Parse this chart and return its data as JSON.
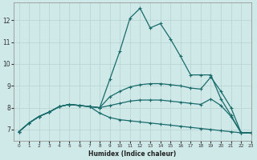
{
  "xlabel": "Humidex (Indice chaleur)",
  "bg_color": "#cfe8e8",
  "line_color": "#1a6b6b",
  "grid_color": "#b8d0d0",
  "xlim": [
    -0.5,
    23
  ],
  "ylim": [
    6.5,
    12.8
  ],
  "yticks": [
    7,
    8,
    9,
    10,
    11,
    12
  ],
  "xticks": [
    0,
    1,
    2,
    3,
    4,
    5,
    6,
    7,
    8,
    9,
    10,
    11,
    12,
    13,
    14,
    15,
    16,
    17,
    18,
    19,
    20,
    21,
    22,
    23
  ],
  "curves": [
    {
      "x": [
        0,
        1,
        2,
        3,
        4,
        5,
        6,
        7,
        8,
        9,
        10,
        11,
        12,
        13,
        14,
        15,
        16,
        17,
        18,
        19,
        20,
        21,
        22,
        23
      ],
      "y": [
        6.9,
        7.3,
        7.6,
        7.8,
        8.05,
        8.15,
        8.1,
        8.05,
        8.0,
        9.3,
        10.6,
        12.1,
        12.55,
        11.65,
        11.85,
        11.15,
        10.35,
        9.5,
        9.5,
        9.5,
        8.4,
        7.65,
        6.85,
        6.85
      ]
    },
    {
      "x": [
        0,
        1,
        2,
        3,
        4,
        5,
        6,
        7,
        8,
        9,
        10,
        11,
        12,
        13,
        14,
        15,
        16,
        17,
        18,
        19,
        20,
        21,
        22,
        23
      ],
      "y": [
        6.9,
        7.3,
        7.6,
        7.8,
        8.05,
        8.15,
        8.1,
        8.05,
        8.0,
        8.5,
        8.75,
        8.95,
        9.05,
        9.1,
        9.1,
        9.05,
        9.0,
        8.9,
        8.85,
        9.4,
        8.75,
        8.0,
        6.85,
        6.85
      ]
    },
    {
      "x": [
        0,
        1,
        2,
        3,
        4,
        5,
        6,
        7,
        8,
        9,
        10,
        11,
        12,
        13,
        14,
        15,
        16,
        17,
        18,
        19,
        20,
        21,
        22,
        23
      ],
      "y": [
        6.9,
        7.3,
        7.6,
        7.8,
        8.05,
        8.15,
        8.1,
        8.05,
        8.0,
        8.1,
        8.2,
        8.3,
        8.35,
        8.35,
        8.35,
        8.3,
        8.25,
        8.2,
        8.15,
        8.4,
        8.1,
        7.6,
        6.85,
        6.85
      ]
    },
    {
      "x": [
        0,
        1,
        2,
        3,
        4,
        5,
        6,
        7,
        8,
        9,
        10,
        11,
        12,
        13,
        14,
        15,
        16,
        17,
        18,
        19,
        20,
        21,
        22,
        23
      ],
      "y": [
        6.9,
        7.3,
        7.6,
        7.8,
        8.05,
        8.15,
        8.1,
        8.05,
        7.75,
        7.55,
        7.45,
        7.4,
        7.35,
        7.3,
        7.25,
        7.2,
        7.15,
        7.1,
        7.05,
        7.0,
        6.95,
        6.9,
        6.85,
        6.85
      ]
    }
  ]
}
